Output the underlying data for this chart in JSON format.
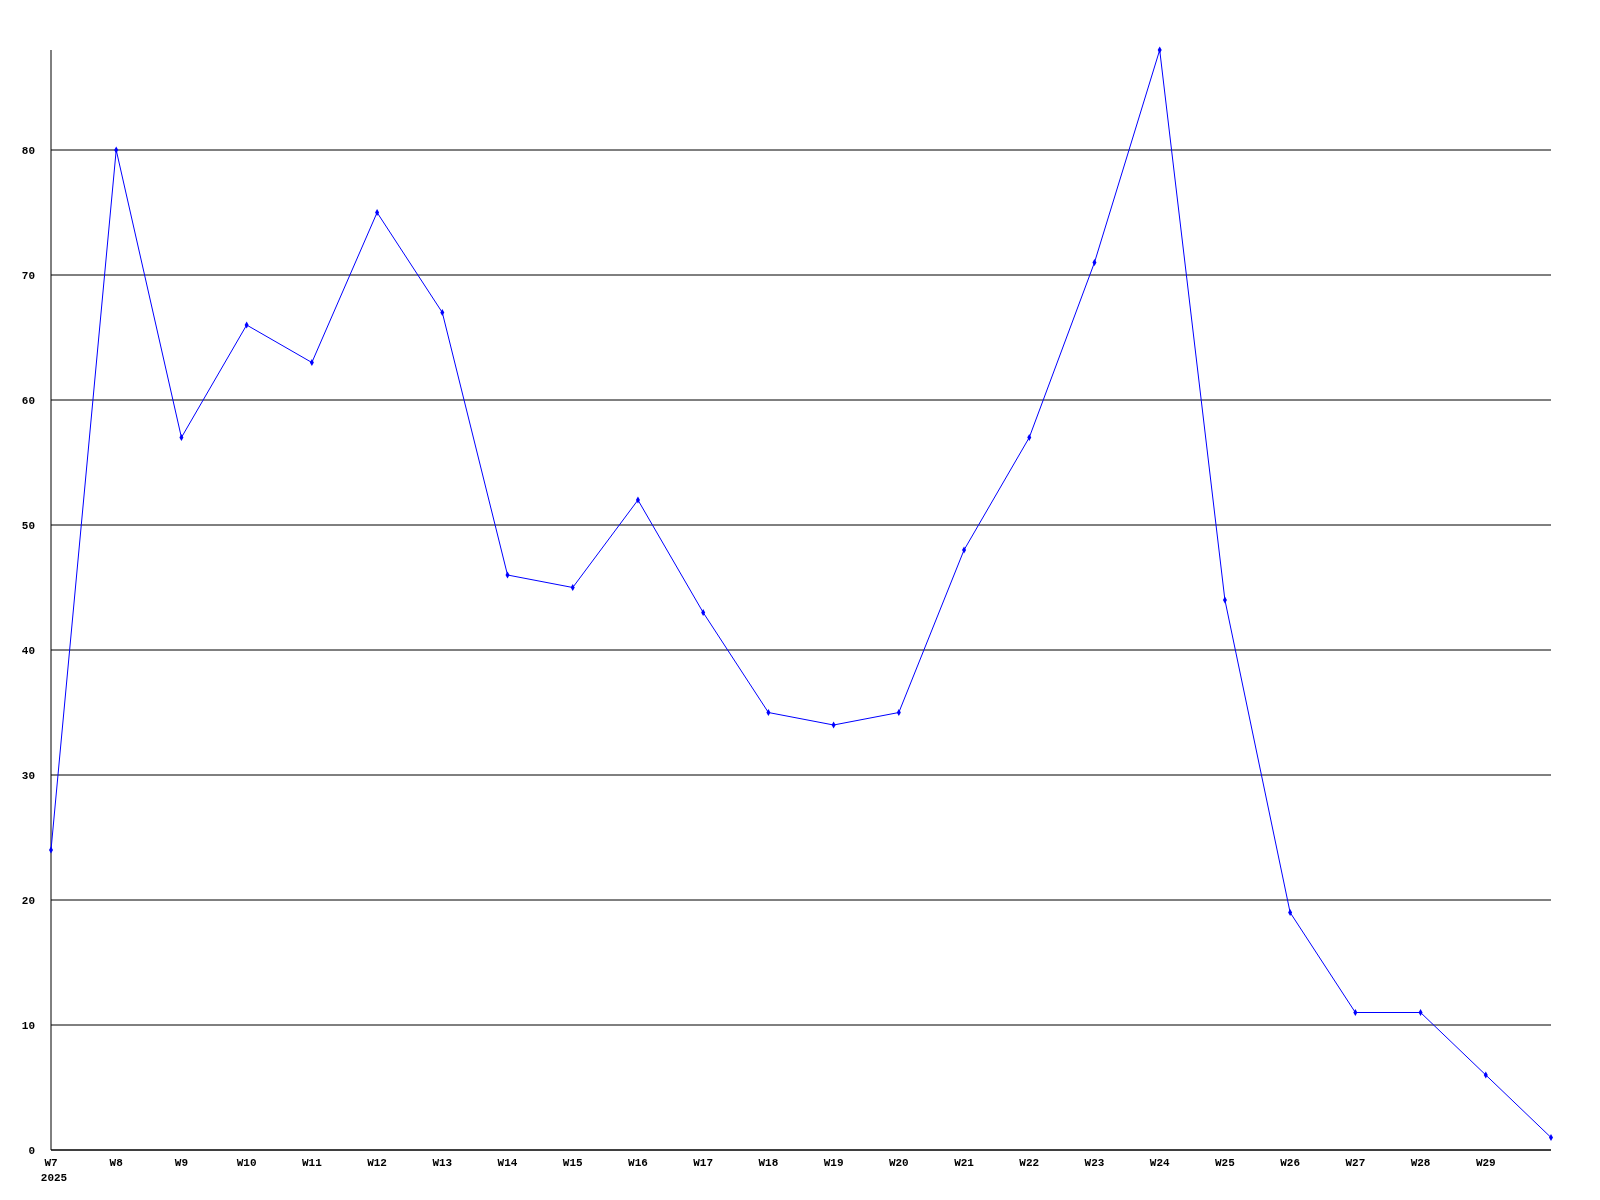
{
  "chart_data": {
    "type": "line",
    "categories": [
      "W7",
      "W8",
      "W9",
      "W10",
      "W11",
      "W12",
      "W13",
      "W14",
      "W15",
      "W16",
      "W17",
      "W18",
      "W19",
      "W20",
      "W21",
      "W22",
      "W23",
      "W24",
      "W25",
      "W26",
      "W27",
      "W28",
      "W29",
      null
    ],
    "series": [
      {
        "color": "#0000ff",
        "values": [
          24,
          80,
          57,
          66,
          63,
          75,
          67,
          46,
          45,
          52,
          43,
          35,
          34,
          35,
          48,
          57,
          71,
          88,
          44,
          19,
          11,
          11,
          6,
          1
        ]
      }
    ],
    "ylim": [
      0,
      88
    ],
    "yticks": [
      0,
      10,
      20,
      30,
      40,
      50,
      60,
      70,
      80
    ],
    "grid": "y",
    "marker": "diamond",
    "line_style": "solid",
    "annotations": [
      "2025"
    ]
  }
}
